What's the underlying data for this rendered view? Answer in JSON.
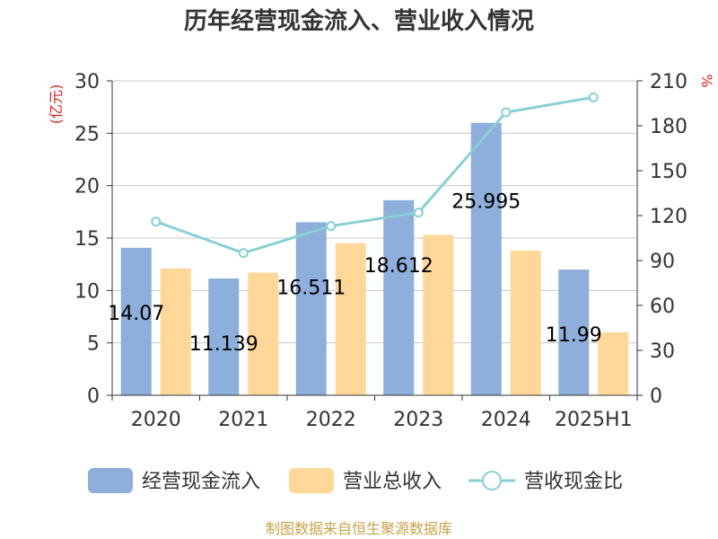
{
  "chart_data": {
    "type": "bar",
    "title": "历年经营现金流入、营业收入情况",
    "categories": [
      "2020",
      "2021",
      "2022",
      "2023",
      "2024",
      "2025H1"
    ],
    "y_left": {
      "unit": "(亿元)",
      "ylim": [
        0,
        30
      ],
      "ticks": [
        0,
        5,
        10,
        15,
        20,
        25,
        30
      ]
    },
    "y_right": {
      "unit": "%",
      "ylim": [
        0,
        210
      ],
      "ticks": [
        0,
        30,
        60,
        90,
        120,
        150,
        180,
        210
      ]
    },
    "series": [
      {
        "name": "经营现金流入",
        "type": "bar",
        "axis": "left",
        "color": "#8eaedb",
        "values": [
          14.07,
          11.139,
          16.511,
          18.612,
          25.995,
          11.99
        ],
        "labels": [
          "14.07",
          "11.139",
          "16.511",
          "18.612",
          "25.995",
          "11.99"
        ]
      },
      {
        "name": "营业总收入",
        "type": "bar",
        "axis": "left",
        "color": "#ffd899",
        "values": [
          12.1,
          11.7,
          14.5,
          15.3,
          13.8,
          6.0
        ]
      },
      {
        "name": "营收现金比",
        "type": "line",
        "axis": "right",
        "color": "#88d0d4",
        "values": [
          116,
          95,
          113,
          122,
          189,
          199
        ]
      }
    ],
    "grid": true,
    "legend_position": "bottom",
    "source": "制图数据来自恒生聚源数据库"
  }
}
